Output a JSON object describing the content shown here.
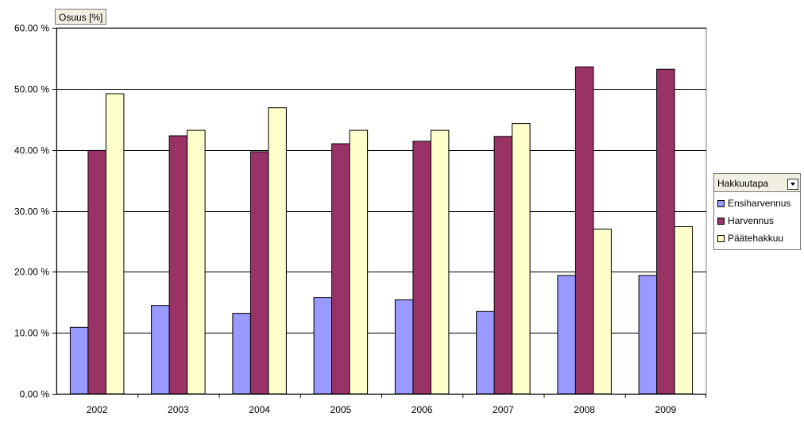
{
  "chart_data": {
    "type": "bar",
    "title": "",
    "xlabel": "",
    "ylabel": "",
    "y_axis_field": "Osuus [%]",
    "categories": [
      "2002",
      "2003",
      "2004",
      "2005",
      "2006",
      "2007",
      "2008",
      "2009"
    ],
    "series": [
      {
        "name": "Ensiharvennus",
        "color": "#9999ff",
        "values": [
          10.9,
          14.5,
          13.2,
          15.8,
          15.4,
          13.5,
          19.4,
          19.4
        ]
      },
      {
        "name": "Harvennus",
        "color": "#993366",
        "values": [
          39.9,
          42.3,
          39.7,
          41.0,
          41.4,
          42.2,
          53.6,
          53.2
        ]
      },
      {
        "name": "Päätehakkuu",
        "color": "#ffffcc",
        "values": [
          49.2,
          43.2,
          46.9,
          43.2,
          43.2,
          44.3,
          27.0,
          27.4
        ]
      }
    ],
    "ylim": [
      0,
      60
    ],
    "yticks": [
      0,
      10,
      20,
      30,
      40,
      50,
      60
    ],
    "ytick_labels": [
      "0.00 %",
      "10.00 %",
      "20.00 %",
      "30.00 %",
      "40.00 %",
      "50.00 %",
      "60.00 %"
    ],
    "grid": "horizontal",
    "legend_position": "right",
    "legend_title": "Hakkuutapa"
  }
}
